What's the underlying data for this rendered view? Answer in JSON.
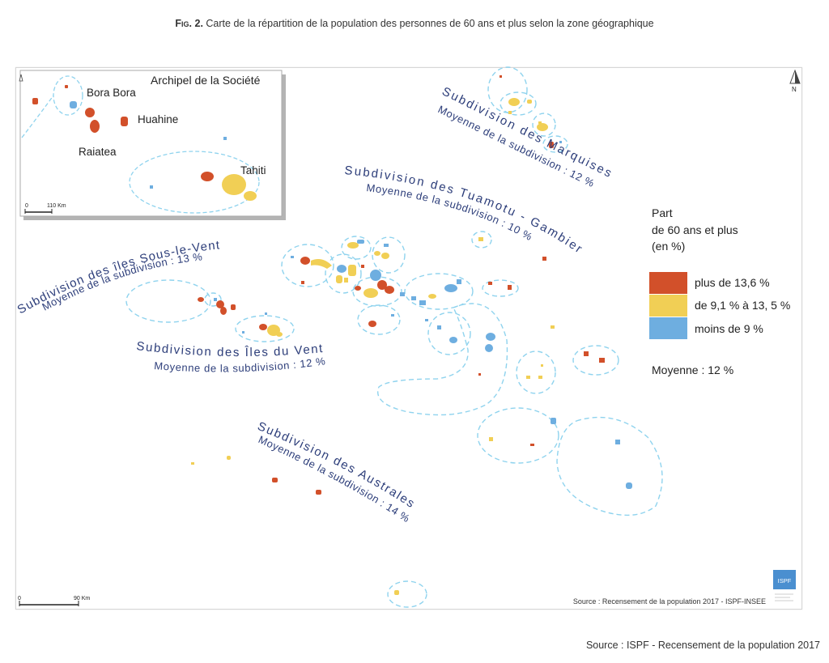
{
  "caption": {
    "fig_label": "Fig. 2.",
    "text": "Carte de la répartition de la population des personnes de 60 ans et plus selon la zone géographique"
  },
  "inset": {
    "title": "Archipel de la Société",
    "labels": {
      "bora_bora": "Bora Bora",
      "huahine": "Huahine",
      "raiatea": "Raiatea",
      "tahiti": "Tahiti"
    },
    "scale_start": "0",
    "scale_end": "110 Km"
  },
  "subdivisions": {
    "marquises": {
      "name": "Subdivision des Marquises",
      "mean": "Moyenne de la subdivision : 12 %"
    },
    "tuamotu": {
      "name": "Subdivision des Tuamotu - Gambier",
      "mean": "Moyenne de la subdivision : 10 %"
    },
    "sous_le_vent": {
      "name": "Subdivision des îles Sous-le-Vent",
      "mean": "Moyenne de la subdivision : 13 %"
    },
    "iles_du_vent": {
      "name": "Subdivision des Îles du Vent",
      "mean": "Moyenne de la subdivision : 12 %"
    },
    "australes": {
      "name": "Subdivision des Australes",
      "mean": "Moyenne de la subdivision : 14 %"
    }
  },
  "legend": {
    "title_line1": "Part",
    "title_line2": "de 60 ans et plus",
    "title_line3": "(en %)",
    "items": [
      {
        "label": "plus de 13,6 %",
        "color": "#d2502a"
      },
      {
        "label": "de 9,1 % à 13, 5 %",
        "color": "#f1cf55"
      },
      {
        "label": "moins de 9 %",
        "color": "#6eaee0"
      }
    ],
    "mean_label": "Moyenne : 12 %"
  },
  "north_label": "N",
  "scale": {
    "start": "0",
    "end": "90 Km"
  },
  "logo_text": "ISPF",
  "map_source": "Source : Recensement de la population 2017 - ISPF-INSEE",
  "page_source": "Source : ISPF - Recensement de la population 2017",
  "colors": {
    "high": "#d2502a",
    "mid": "#f1cf55",
    "low": "#6eaee0",
    "outline": "#8fd3ee",
    "label_text": "#2d3e7a"
  }
}
